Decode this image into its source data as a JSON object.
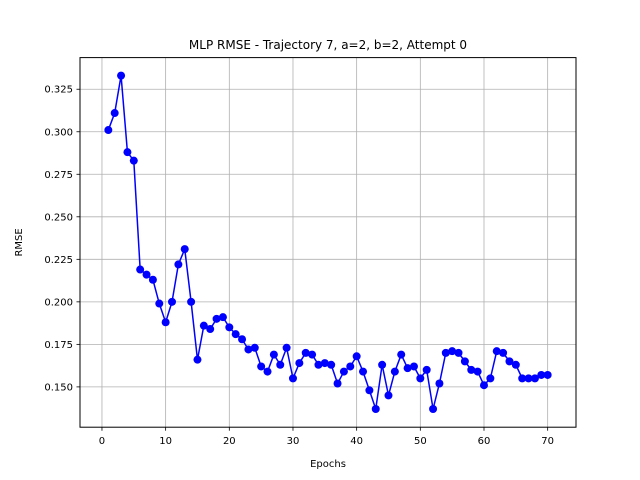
{
  "chart_data": {
    "type": "line",
    "title": "MLP RMSE - Trajectory 7, a=2, b=2, Attempt 0",
    "xlabel": "Epochs",
    "ylabel": "RMSE",
    "xlim": [
      -3.45,
      74.45
    ],
    "ylim": [
      0.1263,
      0.3436
    ],
    "xticks": [
      0,
      10,
      20,
      30,
      40,
      50,
      60,
      70
    ],
    "yticks": [
      0.15,
      0.175,
      0.2,
      0.225,
      0.25,
      0.275,
      0.3,
      0.325
    ],
    "xtick_labels": [
      "0",
      "10",
      "20",
      "30",
      "40",
      "50",
      "60",
      "70"
    ],
    "ytick_labels": [
      "0.150",
      "0.175",
      "0.200",
      "0.225",
      "0.250",
      "0.275",
      "0.300",
      "0.325"
    ],
    "grid": true,
    "line_color": "#0000ff",
    "marker": "circle",
    "series": [
      {
        "x": [
          1,
          2,
          3,
          4,
          5,
          6,
          7,
          8,
          9,
          10,
          11,
          12,
          13,
          14,
          15,
          16,
          17,
          18,
          19,
          20,
          21,
          22,
          23,
          24,
          25,
          26,
          27,
          28,
          29,
          30,
          31,
          32,
          33,
          34,
          35,
          36,
          37,
          38,
          39,
          40,
          41,
          42,
          43,
          44,
          45,
          46,
          47,
          48,
          49,
          50,
          51,
          52,
          53,
          54,
          55,
          56,
          57,
          58,
          59,
          60,
          61,
          62,
          63,
          64,
          65,
          66,
          67,
          68,
          69,
          70
        ],
        "values": [
          0.301,
          0.311,
          0.333,
          0.288,
          0.283,
          0.219,
          0.216,
          0.213,
          0.199,
          0.188,
          0.2,
          0.222,
          0.231,
          0.2,
          0.166,
          0.186,
          0.184,
          0.19,
          0.191,
          0.185,
          0.181,
          0.178,
          0.172,
          0.173,
          0.162,
          0.159,
          0.169,
          0.163,
          0.173,
          0.155,
          0.164,
          0.17,
          0.169,
          0.163,
          0.164,
          0.163,
          0.152,
          0.159,
          0.162,
          0.168,
          0.159,
          0.148,
          0.137,
          0.163,
          0.145,
          0.159,
          0.169,
          0.161,
          0.162,
          0.155,
          0.16,
          0.137,
          0.152,
          0.17,
          0.171,
          0.17,
          0.165,
          0.16,
          0.159,
          0.151,
          0.155,
          0.171,
          0.17,
          0.165,
          0.163,
          0.155,
          0.155,
          0.155,
          0.157,
          0.157
        ]
      }
    ]
  }
}
